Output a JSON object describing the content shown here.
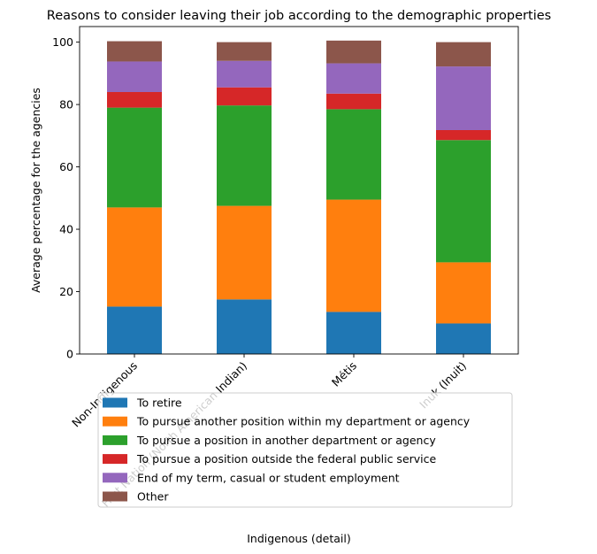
{
  "chart_data": {
    "type": "bar",
    "stacked": true,
    "title": "Reasons to consider leaving their job according to the demographic properties",
    "xlabel": "Indigenous (detail)",
    "ylabel": "Average percentage for the agencies",
    "categories": [
      "Non-Indigenous",
      "First Nation (North American Indian)",
      "Métis",
      "Inuk (Inuit)"
    ],
    "ylim": [
      0,
      105
    ],
    "yticks": [
      0,
      20,
      40,
      60,
      80,
      100
    ],
    "grid": false,
    "legend_position": "bottom-overlapping",
    "series": [
      {
        "name": "To retire",
        "color": "#1f77b4",
        "values": [
          15.2,
          17.5,
          13.5,
          9.8
        ]
      },
      {
        "name": "To pursue another position within my department or agency",
        "color": "#ff7f0e",
        "values": [
          31.8,
          30.0,
          36.0,
          19.6
        ]
      },
      {
        "name": "To pursue a position in another department or agency",
        "color": "#2ca02c",
        "values": [
          32.0,
          32.2,
          29.0,
          39.2
        ]
      },
      {
        "name": "To pursue a position outside the federal public service",
        "color": "#d62728",
        "values": [
          5.0,
          5.8,
          5.0,
          3.2
        ]
      },
      {
        "name": "End of my term, casual or student employment",
        "color": "#9467bd",
        "values": [
          9.8,
          8.5,
          9.7,
          20.4
        ]
      },
      {
        "name": "Other",
        "color": "#8c564b",
        "values": [
          6.5,
          6.0,
          7.3,
          7.8
        ]
      }
    ]
  }
}
